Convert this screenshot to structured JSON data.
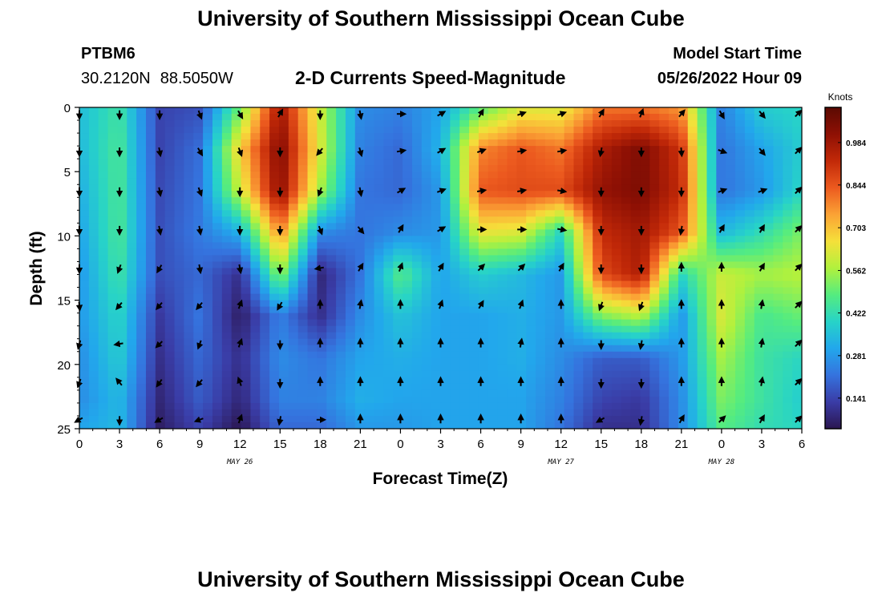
{
  "title": "University of Southern Mississippi Ocean Cube",
  "title_repeat": "University of Southern Mississippi Ocean Cube",
  "station": {
    "id": "PTBM6",
    "lat": "30.2120N",
    "lon": "88.5050W"
  },
  "model": {
    "label": "Model Start Time",
    "start": "05/26/2022 Hour 09"
  },
  "chart_data": {
    "type": "heatmap",
    "title": "2-D Currents Speed-Magnitude",
    "xlabel": "Forecast Time(Z)",
    "ylabel": "Depth (ft)",
    "x_tick_labels": [
      "0",
      "3",
      "6",
      "9",
      "12",
      "15",
      "18",
      "21",
      "0",
      "3",
      "6",
      "9",
      "12",
      "15",
      "18",
      "21",
      "0",
      "3",
      "6"
    ],
    "y_tick_labels": [
      "0",
      "5",
      "10",
      "15",
      "20",
      "25"
    ],
    "ylim": [
      0,
      25
    ],
    "date_labels": [
      {
        "label": "MAY 26",
        "hour": 12
      },
      {
        "label": "MAY 27",
        "hour": 36
      },
      {
        "label": "MAY 28",
        "hour": 48
      }
    ],
    "colorbar": {
      "label": "Knots",
      "min": 0.04,
      "max": 1.1,
      "ticks": [
        "0.141",
        "0.281",
        "0.422",
        "0.562",
        "0.703",
        "0.844",
        "0.984"
      ],
      "colors": [
        "#2b1650",
        "#3a3ca6",
        "#3573de",
        "#22a7ec",
        "#27d3c8",
        "#55ec7f",
        "#b1f13d",
        "#f5e03a",
        "#fba235",
        "#ec5a1f",
        "#c22908",
        "#8e1004",
        "#5b0a02"
      ]
    },
    "time_hours": [
      0,
      3,
      6,
      9,
      12,
      15,
      18,
      21,
      24,
      27,
      30,
      33,
      36,
      39,
      42,
      45,
      48,
      51,
      54
    ],
    "depths_ft": [
      0,
      3.25,
      6.5,
      9.75,
      13,
      16.25,
      19.5,
      22.75,
      25
    ],
    "speed_knots": [
      [
        0.35,
        0.44,
        0.14,
        0.16,
        0.5,
        0.98,
        0.6,
        0.26,
        0.24,
        0.3,
        0.48,
        0.62,
        0.62,
        0.8,
        0.8,
        0.76,
        0.24,
        0.38,
        0.4
      ],
      [
        0.34,
        0.46,
        0.14,
        0.21,
        0.68,
        1.04,
        0.62,
        0.24,
        0.2,
        0.33,
        0.78,
        0.84,
        0.8,
        0.96,
        1.04,
        0.9,
        0.22,
        0.3,
        0.38
      ],
      [
        0.32,
        0.46,
        0.15,
        0.22,
        0.6,
        1.02,
        0.56,
        0.22,
        0.2,
        0.28,
        0.84,
        0.86,
        0.86,
        1.0,
        1.04,
        0.92,
        0.22,
        0.28,
        0.4
      ],
      [
        0.3,
        0.46,
        0.16,
        0.23,
        0.32,
        0.78,
        0.26,
        0.22,
        0.26,
        0.28,
        0.64,
        0.62,
        0.4,
        0.92,
        0.98,
        0.84,
        0.34,
        0.42,
        0.52
      ],
      [
        0.28,
        0.44,
        0.16,
        0.2,
        0.1,
        0.54,
        0.08,
        0.22,
        0.48,
        0.3,
        0.38,
        0.34,
        0.28,
        0.86,
        0.96,
        0.4,
        0.6,
        0.56,
        0.58
      ],
      [
        0.28,
        0.4,
        0.12,
        0.22,
        0.06,
        0.24,
        0.1,
        0.26,
        0.36,
        0.3,
        0.3,
        0.32,
        0.28,
        0.52,
        0.58,
        0.28,
        0.62,
        0.46,
        0.5
      ],
      [
        0.26,
        0.38,
        0.1,
        0.2,
        0.1,
        0.26,
        0.22,
        0.3,
        0.32,
        0.3,
        0.3,
        0.32,
        0.26,
        0.18,
        0.18,
        0.28,
        0.56,
        0.44,
        0.4
      ],
      [
        0.26,
        0.34,
        0.08,
        0.18,
        0.08,
        0.24,
        0.24,
        0.32,
        0.3,
        0.3,
        0.3,
        0.3,
        0.24,
        0.14,
        0.12,
        0.26,
        0.52,
        0.44,
        0.38
      ],
      [
        0.3,
        0.34,
        0.06,
        0.14,
        0.04,
        0.2,
        0.2,
        0.28,
        0.28,
        0.3,
        0.3,
        0.3,
        0.22,
        0.1,
        0.1,
        0.26,
        0.48,
        0.42,
        0.4
      ]
    ],
    "arrow_depths_ft": [
      0.2,
      3.4,
      6.5,
      9.5,
      12.5,
      15.4,
      18.4,
      21.4,
      24.3
    ],
    "arrow_dir_deg": [
      [
        180,
        180,
        180,
        160,
        150,
        30,
        180,
        170,
        90,
        60,
        30,
        70,
        70,
        30,
        20,
        40,
        150,
        140,
        45
      ],
      [
        180,
        180,
        170,
        150,
        160,
        180,
        220,
        165,
        80,
        60,
        70,
        80,
        80,
        190,
        180,
        175,
        110,
        140,
        45
      ],
      [
        180,
        180,
        170,
        160,
        180,
        180,
        200,
        170,
        60,
        70,
        80,
        80,
        100,
        180,
        180,
        180,
        70,
        70,
        45
      ],
      [
        180,
        180,
        170,
        170,
        180,
        180,
        160,
        140,
        30,
        60,
        90,
        90,
        100,
        180,
        180,
        190,
        30,
        30,
        45
      ],
      [
        180,
        200,
        210,
        170,
        170,
        180,
        260,
        30,
        20,
        30,
        45,
        45,
        30,
        180,
        180,
        0,
        0,
        30,
        45
      ],
      [
        175,
        220,
        220,
        220,
        20,
        210,
        0,
        10,
        0,
        20,
        30,
        20,
        0,
        200,
        200,
        0,
        0,
        10,
        45
      ],
      [
        195,
        260,
        225,
        200,
        20,
        180,
        0,
        0,
        0,
        0,
        0,
        10,
        0,
        180,
        190,
        0,
        0,
        10,
        45
      ],
      [
        200,
        320,
        215,
        220,
        340,
        180,
        0,
        0,
        0,
        0,
        0,
        0,
        0,
        180,
        180,
        0,
        0,
        10,
        45
      ],
      [
        240,
        180,
        240,
        250,
        20,
        190,
        90,
        0,
        0,
        0,
        0,
        0,
        0,
        240,
        190,
        30,
        45,
        30,
        45
      ]
    ]
  }
}
